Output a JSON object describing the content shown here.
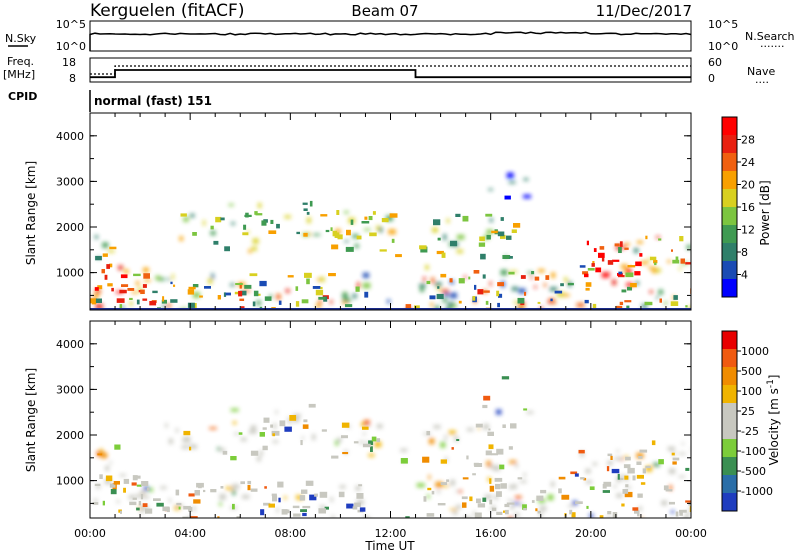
{
  "header": {
    "station": "Kerguelen (fitACF)",
    "beam": "Beam 07",
    "date": "11/Dec/2017"
  },
  "panels": {
    "nsky": {
      "label": "N.Sky",
      "left_ticks": [
        "10^5",
        "10^0"
      ],
      "right_ticks": [
        "10^5",
        "10^0"
      ],
      "right_label": "N.Search",
      "right_dots": "......."
    },
    "freq": {
      "label_line1": "Freq.",
      "label_line2": "[MHz]",
      "left_ticks": [
        "18",
        "8"
      ],
      "right_ticks": [
        "60",
        "0"
      ],
      "right_label": "Nave",
      "right_dots": "...."
    },
    "cpid": {
      "label": "CPID",
      "text": "normal (fast) 151"
    }
  },
  "chart_data": [
    {
      "type": "line",
      "title": "Freq. [MHz]",
      "x": [
        "00:00",
        "01:00",
        "01:00",
        "13:00",
        "13:00",
        "24:00"
      ],
      "values": [
        10,
        10,
        13,
        13,
        10,
        10
      ],
      "ylim": [
        8,
        18
      ]
    },
    {
      "type": "heatmap",
      "name": "power",
      "ylabel": "Slant Range [km]",
      "xlabel": "",
      "y_ticks": [
        "1000",
        "2000",
        "3000",
        "4000"
      ],
      "ylim": [
        180,
        4500
      ],
      "colorbar": {
        "label": "Power [dB]",
        "ticks": [
          "4",
          "8",
          "12",
          "16",
          "20",
          "24",
          "28"
        ],
        "range": [
          0,
          30
        ],
        "colors": [
          "#0000ff",
          "#1a4bb4",
          "#2f7f6a",
          "#3f9a52",
          "#7cc540",
          "#d8d020",
          "#f8a000",
          "#f06010",
          "#e82010",
          "#ff0000"
        ]
      }
    },
    {
      "type": "heatmap",
      "name": "velocity",
      "ylabel": "Slant Range [km]",
      "xlabel": "Time UT",
      "y_ticks": [
        "1000",
        "2000",
        "3000",
        "4000"
      ],
      "ylim": [
        180,
        4500
      ],
      "x_ticks": [
        "00:00",
        "04:00",
        "08:00",
        "12:00",
        "16:00",
        "20:00",
        "00:00"
      ],
      "colorbar": {
        "label": "Velocity [m s^-1]",
        "ticks": [
          "1000",
          "500",
          "100",
          "25",
          "-25",
          "-100",
          "-500",
          "-1000"
        ],
        "colors": [
          "#1f3dbf",
          "#2a6ea8",
          "#3a8f52",
          "#7ccd3a",
          "#c8c8c0",
          "#c8c8c0",
          "#f0b400",
          "#f08c00",
          "#f05a10",
          "#e80000"
        ]
      }
    }
  ]
}
